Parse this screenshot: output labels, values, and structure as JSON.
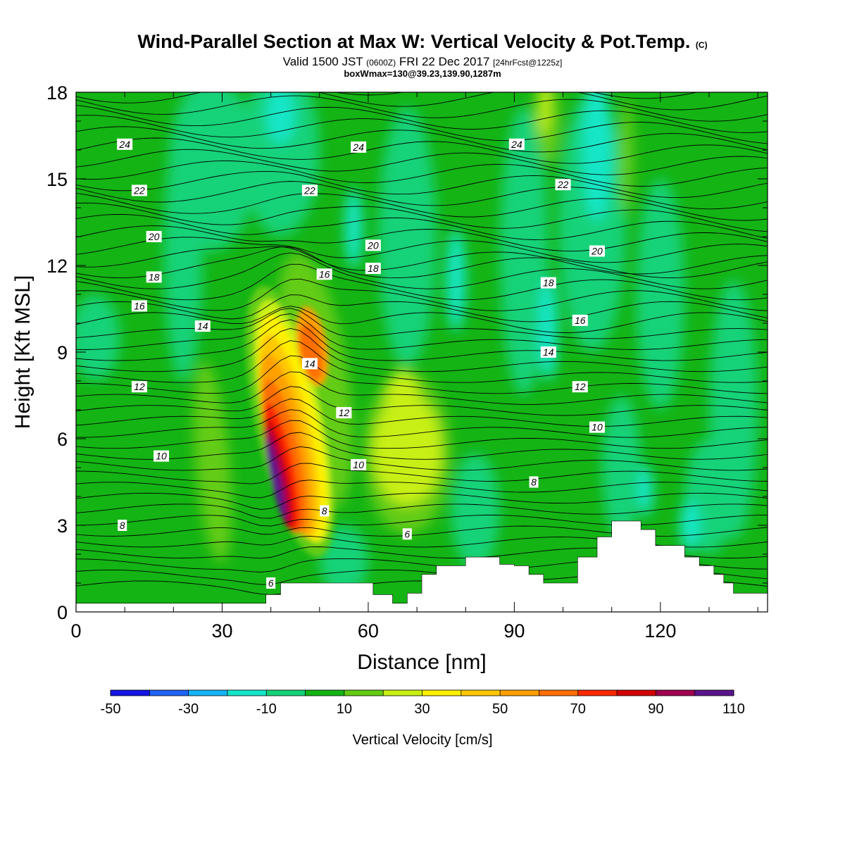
{
  "title": {
    "main": "Wind-Parallel Section at Max W: Vertical Velocity & Pot.Temp.",
    "copyright": "(C)",
    "valid_prefix": "Valid 1500 JST",
    "valid_utc": "(0600Z)",
    "valid_date": "FRI 22 Dec 2017",
    "forecast": "[24hrFcst@1225z]",
    "box_info": "boxWmax=130@39.23,139.90,1287m"
  },
  "colorbar": {
    "label": "Vertical Velocity [cm/s]",
    "tick_labels": [
      "-50",
      "-30",
      "-10",
      "10",
      "30",
      "50",
      "70",
      "90",
      "110"
    ],
    "colors": [
      "#1414e6",
      "#1e64f5",
      "#14b4f5",
      "#14e6c8",
      "#14d278",
      "#14b414",
      "#64cc14",
      "#c8f014",
      "#fff000",
      "#ffc800",
      "#ffa000",
      "#ff6e00",
      "#ff2800",
      "#d20000",
      "#a00050",
      "#5a148c"
    ]
  },
  "chart_data": {
    "type": "heatmap",
    "xlabel": "Distance [nm]",
    "ylabel": "Height [Kft MSL]",
    "xlim": [
      0,
      142
    ],
    "ylim": [
      0,
      18
    ],
    "xticks": [
      "0",
      "30",
      "60",
      "90",
      "120"
    ],
    "yticks": [
      "0",
      "3",
      "6",
      "9",
      "12",
      "15",
      "18"
    ],
    "shaded_field": "Vertical Velocity [cm/s]",
    "contour_field": "Potential temperature",
    "levels": [
      -50,
      -40,
      -30,
      -20,
      -10,
      0,
      10,
      20,
      30,
      40,
      50,
      60,
      70,
      80,
      90,
      100,
      110
    ],
    "updraft_core": {
      "x": 41,
      "y": 4.6,
      "max_w": 130
    },
    "terrain": [
      [
        0,
        0.3
      ],
      [
        39,
        0.3
      ],
      [
        39,
        0.6
      ],
      [
        42,
        0.6
      ],
      [
        42,
        1.0
      ],
      [
        61,
        1.0
      ],
      [
        61,
        0.6
      ],
      [
        65,
        0.6
      ],
      [
        65,
        0.3
      ],
      [
        68,
        0.3
      ],
      [
        68,
        0.65
      ],
      [
        71,
        0.65
      ],
      [
        71,
        1.3
      ],
      [
        74,
        1.3
      ],
      [
        74,
        1.6
      ],
      [
        80,
        1.6
      ],
      [
        80,
        1.9
      ],
      [
        87,
        1.9
      ],
      [
        87,
        1.65
      ],
      [
        90,
        1.65
      ],
      [
        90,
        1.6
      ],
      [
        93,
        1.6
      ],
      [
        93,
        1.3
      ],
      [
        96,
        1.3
      ],
      [
        96,
        1.0
      ],
      [
        99,
        1.0
      ],
      [
        99,
        1.0
      ],
      [
        103,
        1.0
      ],
      [
        103,
        1.9
      ],
      [
        107,
        1.9
      ],
      [
        107,
        2.6
      ],
      [
        110,
        2.6
      ],
      [
        110,
        3.15
      ],
      [
        116,
        3.15
      ],
      [
        116,
        2.85
      ],
      [
        119,
        2.85
      ],
      [
        119,
        2.3
      ],
      [
        125,
        2.3
      ],
      [
        125,
        1.9
      ],
      [
        128,
        1.9
      ],
      [
        128,
        1.6
      ],
      [
        131,
        1.6
      ],
      [
        131,
        1.3
      ],
      [
        133,
        1.3
      ],
      [
        133,
        1.0
      ],
      [
        135,
        1.0
      ],
      [
        135,
        0.65
      ],
      [
        142,
        0.65
      ]
    ],
    "theta_label_values": [
      "24",
      "22",
      "20",
      "18",
      "16",
      "14",
      "12",
      "10",
      "8",
      "6"
    ],
    "theta_labels": [
      {
        "text": "24",
        "x": 10,
        "y": 16.2
      },
      {
        "text": "24",
        "x": 58,
        "y": 16.1
      },
      {
        "text": "24",
        "x": 90.5,
        "y": 16.2
      },
      {
        "text": "22",
        "x": 13,
        "y": 14.6
      },
      {
        "text": "22",
        "x": 48,
        "y": 14.6
      },
      {
        "text": "22",
        "x": 100,
        "y": 14.8
      },
      {
        "text": "20",
        "x": 16,
        "y": 13.0
      },
      {
        "text": "20",
        "x": 61,
        "y": 12.7
      },
      {
        "text": "20",
        "x": 107,
        "y": 12.5
      },
      {
        "text": "18",
        "x": 16,
        "y": 11.6
      },
      {
        "text": "18",
        "x": 61,
        "y": 11.9
      },
      {
        "text": "18",
        "x": 97,
        "y": 11.4
      },
      {
        "text": "16",
        "x": 13,
        "y": 10.6
      },
      {
        "text": "16",
        "x": 51,
        "y": 11.7
      },
      {
        "text": "16",
        "x": 103.5,
        "y": 10.1
      },
      {
        "text": "14",
        "x": 26,
        "y": 9.9
      },
      {
        "text": "14",
        "x": 48,
        "y": 8.6
      },
      {
        "text": "14",
        "x": 97,
        "y": 9.0
      },
      {
        "text": "12",
        "x": 13,
        "y": 7.8
      },
      {
        "text": "12",
        "x": 55,
        "y": 6.9
      },
      {
        "text": "12",
        "x": 103.5,
        "y": 7.8
      },
      {
        "text": "10",
        "x": 17.5,
        "y": 5.4
      },
      {
        "text": "10",
        "x": 58,
        "y": 5.1
      },
      {
        "text": "10",
        "x": 107,
        "y": 6.4
      },
      {
        "text": "8",
        "x": 9.5,
        "y": 3.0
      },
      {
        "text": "8",
        "x": 51,
        "y": 3.5
      },
      {
        "text": "8",
        "x": 94,
        "y": 4.5
      },
      {
        "text": "6",
        "x": 40,
        "y": 1.0
      },
      {
        "text": "6",
        "x": 68,
        "y": 2.7
      }
    ]
  }
}
